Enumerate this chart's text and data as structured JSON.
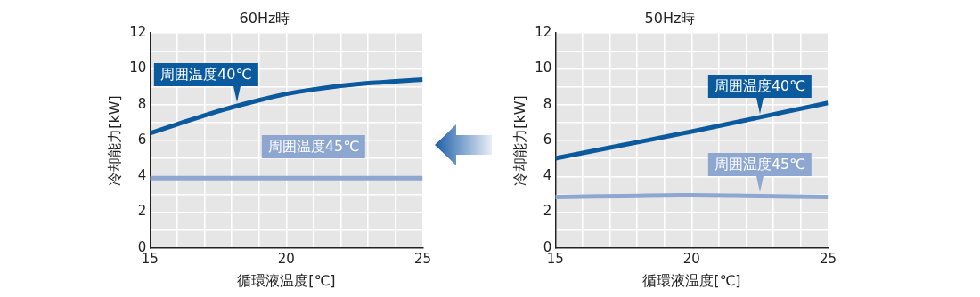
{
  "chart_data": [
    {
      "type": "line",
      "title": "60Hz時",
      "xlabel": "循環液温度[℃]",
      "ylabel": "冷却能力[kW]",
      "x": [
        15,
        16,
        17,
        18,
        19,
        20,
        21,
        22,
        23,
        24,
        25
      ],
      "series": [
        {
          "name": "周囲温度40℃",
          "color": "#0b5a9e",
          "values": [
            6.4,
            6.9,
            7.4,
            7.85,
            8.25,
            8.6,
            8.85,
            9.05,
            9.2,
            9.3,
            9.4
          ]
        },
        {
          "name": "周囲温度45℃",
          "color": "#8ea7d1",
          "values": [
            3.9,
            3.9,
            3.9,
            3.9,
            3.9,
            3.9,
            3.9,
            3.9,
            3.9,
            3.9,
            3.9
          ]
        }
      ],
      "xlim": [
        15,
        25
      ],
      "ylim": [
        0,
        12
      ],
      "xticks": [
        15,
        {
          "value": 16,
          "label": null
        },
        {
          "value": 17,
          "label": null
        },
        {
          "value": 18,
          "label": null
        },
        {
          "value": 19,
          "label": null
        },
        20,
        {
          "value": 21,
          "label": null
        },
        {
          "value": 22,
          "label": null
        },
        {
          "value": 23,
          "label": null
        },
        {
          "value": 24,
          "label": null
        },
        25
      ],
      "yticks": [
        0,
        {
          "value": 1,
          "label": null
        },
        2,
        {
          "value": 3,
          "label": null
        },
        4,
        {
          "value": 5,
          "label": null
        },
        6,
        {
          "value": 7,
          "label": null
        },
        8,
        {
          "value": 9,
          "label": null
        },
        10,
        {
          "value": 11,
          "label": null
        },
        12
      ],
      "grid": true,
      "legend": false,
      "marker": "none",
      "line_style": "solid"
    },
    {
      "type": "line",
      "title": "50Hz時",
      "xlabel": "循環液温度[℃]",
      "ylabel": "冷却能力[kW]",
      "x": [
        15,
        17.5,
        20,
        22.5,
        25
      ],
      "series": [
        {
          "name": "周囲温度40℃",
          "color": "#0b5a9e",
          "values": [
            5.0,
            5.75,
            6.5,
            7.3,
            8.1
          ]
        },
        {
          "name": "周囲温度45℃",
          "color": "#8ea7d1",
          "values": [
            2.85,
            2.9,
            2.95,
            2.9,
            2.85
          ]
        }
      ],
      "xlim": [
        15,
        25
      ],
      "ylim": [
        0,
        12
      ],
      "xticks": [
        15,
        {
          "value": 16,
          "label": null
        },
        {
          "value": 17,
          "label": null
        },
        {
          "value": 18,
          "label": null
        },
        {
          "value": 19,
          "label": null
        },
        20,
        {
          "value": 21,
          "label": null
        },
        {
          "value": 22,
          "label": null
        },
        {
          "value": 23,
          "label": null
        },
        {
          "value": 24,
          "label": null
        },
        25
      ],
      "yticks": [
        0,
        {
          "value": 1,
          "label": null
        },
        2,
        {
          "value": 3,
          "label": null
        },
        4,
        {
          "value": 5,
          "label": null
        },
        6,
        {
          "value": 7,
          "label": null
        },
        8,
        {
          "value": 9,
          "label": null
        },
        10,
        {
          "value": 11,
          "label": null
        },
        12
      ],
      "grid": true,
      "legend": false,
      "marker": "none",
      "line_style": "solid"
    }
  ]
}
